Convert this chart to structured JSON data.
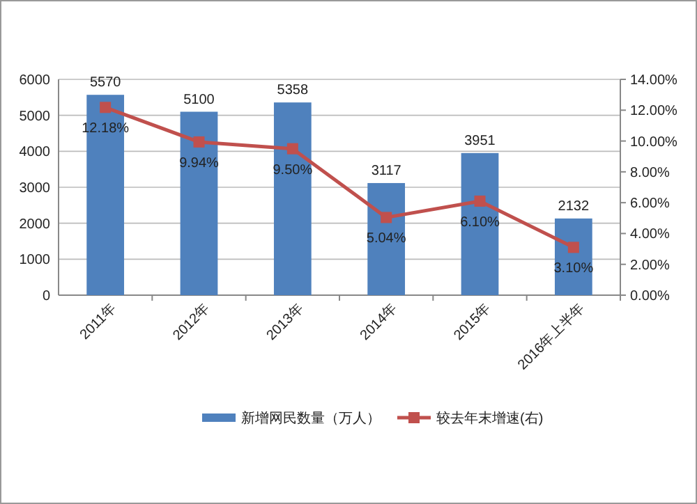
{
  "chart_data": {
    "type": "bar",
    "categories": [
      "2011年",
      "2012年",
      "2013年",
      "2014年",
      "2015年",
      "2016年上半年"
    ],
    "series": [
      {
        "name": "新增网民数量（万人）",
        "color": "#4f81bd",
        "values": [
          5570,
          5100,
          5358,
          3117,
          3951,
          2132
        ],
        "value_labels": [
          "5570",
          "5100",
          "5358",
          "3117",
          "3951",
          "2132"
        ]
      },
      {
        "name": "较去年末增速(右)",
        "type": "line",
        "axis": "y2",
        "color": "#c0504d",
        "marker": "square",
        "values": [
          12.18,
          9.94,
          9.5,
          5.04,
          6.1,
          3.1
        ],
        "value_labels": [
          "12.18%",
          "9.94%",
          "9.50%",
          "5.04%",
          "6.10%",
          "3.10%"
        ]
      }
    ],
    "ylim": [
      0,
      6000
    ],
    "yticks": [
      0,
      1000,
      2000,
      3000,
      4000,
      5000,
      6000
    ],
    "y2lim": [
      0,
      14
    ],
    "y2ticks": [
      {
        "value": 0,
        "label": "0.00%"
      },
      {
        "value": 2,
        "label": "2.00%"
      },
      {
        "value": 4,
        "label": "4.00%"
      },
      {
        "value": 6,
        "label": "6.00%"
      },
      {
        "value": 8,
        "label": "8.00%"
      },
      {
        "value": 10,
        "label": "10.00%"
      },
      {
        "value": 12,
        "label": "12.00%"
      },
      {
        "value": 14,
        "label": "14.00%"
      }
    ],
    "grid": "y",
    "legend": "bottom"
  }
}
